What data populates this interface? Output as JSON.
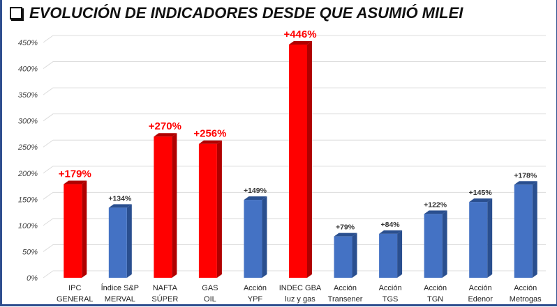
{
  "chart_data": {
    "type": "bar",
    "title": "EVOLUCIÓN DE INDICADORES DESDE QUE ASUMIÓ MILEI",
    "categories": [
      [
        "IPC",
        "GENERAL"
      ],
      [
        "Índice S&P",
        "MERVAL"
      ],
      [
        "NAFTA",
        "SÚPER"
      ],
      [
        "GAS",
        "OIL"
      ],
      [
        "Acción",
        "YPF"
      ],
      [
        "INDEC GBA",
        "luz y gas"
      ],
      [
        "Acción",
        "Transener"
      ],
      [
        "Acción",
        "TGS"
      ],
      [
        "Acción",
        "TGN"
      ],
      [
        "Acción",
        "Edenor"
      ],
      [
        "Acción",
        "Metrogas"
      ]
    ],
    "values": [
      179,
      134,
      270,
      256,
      149,
      446,
      79,
      84,
      122,
      145,
      178
    ],
    "labels": [
      "+179%",
      "+134%",
      "+270%",
      "+256%",
      "+149%",
      "+446%",
      "+79%",
      "+84%",
      "+122%",
      "+145%",
      "+178%"
    ],
    "highlight": [
      true,
      false,
      true,
      true,
      false,
      true,
      false,
      false,
      false,
      false,
      false
    ],
    "yticks": [
      "0%",
      "50%",
      "100%",
      "150%",
      "200%",
      "250%",
      "300%",
      "350%",
      "400%",
      "450%"
    ],
    "ylim": [
      0,
      450
    ],
    "grid": true,
    "colors": {
      "red": "#ff0000",
      "red_side": "#b00000",
      "blue": "#4472c4",
      "blue_side": "#2a4f8f"
    }
  }
}
